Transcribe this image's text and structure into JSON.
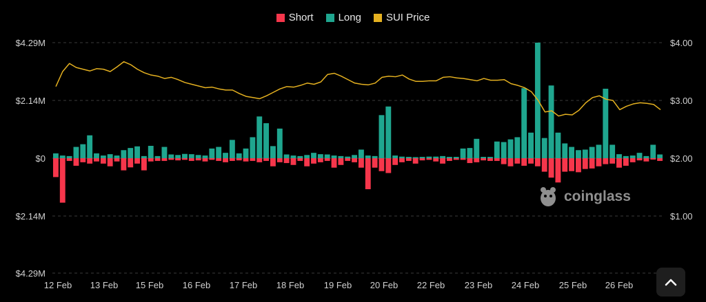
{
  "legend": {
    "short": "Short",
    "long": "Long",
    "price": "SUI Price"
  },
  "watermark": "coinglass",
  "colors": {
    "short": "#f6364b",
    "long": "#1fa68f",
    "price": "#e5b120",
    "grid": "#3a3a3a",
    "background": "#000000"
  },
  "icons": {
    "scroll_top": "chevron-up-icon",
    "logo": "coinglass-logo-icon"
  },
  "chart_data": {
    "type": "bar",
    "y_left_ticks": [
      "$4.29M",
      "$2.14M",
      "$0",
      "$2.14M",
      "$4.29M"
    ],
    "y_left_range": [
      -4.29,
      4.29
    ],
    "y_left_unit": "M USD",
    "y_right_ticks": [
      "$4.00",
      "$3.00",
      "$2.00",
      "$1.00"
    ],
    "y_right_range": [
      0,
      4
    ],
    "x_ticks": [
      "12 Feb",
      "13 Feb",
      "15 Feb",
      "16 Feb",
      "17 Feb",
      "18 Feb",
      "19 Feb",
      "20 Feb",
      "22 Feb",
      "23 Feb",
      "24 Feb",
      "25 Feb",
      "26 Feb"
    ],
    "grid": true,
    "legend_position": "top-center",
    "series": [
      {
        "name": "Long",
        "values": [
          0.18,
          0.1,
          0.08,
          0.42,
          0.52,
          0.85,
          0.18,
          0.1,
          0.15,
          0.1,
          0.3,
          0.38,
          0.44,
          0.08,
          0.46,
          0.08,
          0.42,
          0.14,
          0.12,
          0.16,
          0.15,
          0.12,
          0.1,
          0.36,
          0.42,
          0.2,
          0.68,
          0.18,
          0.36,
          0.78,
          1.55,
          1.3,
          0.45,
          1.1,
          0.14,
          0.1,
          0.08,
          0.12,
          0.2,
          0.15,
          0.14,
          0.1,
          0.08,
          0.06,
          0.12,
          0.32,
          0.1,
          0.08,
          1.6,
          1.92,
          0.1,
          0.06,
          0.05,
          0.04,
          0.05,
          0.06,
          0.06,
          0.08,
          0.05,
          0.05,
          0.36,
          0.38,
          0.72,
          0.05,
          0.05,
          0.62,
          0.6,
          0.7,
          0.78,
          2.6,
          0.95,
          4.29,
          0.75,
          2.7,
          0.95,
          0.55,
          0.42,
          0.3,
          0.32,
          0.42,
          0.5,
          2.58,
          0.5,
          0.15,
          0.08,
          0.1,
          0.2,
          0.08,
          0.5,
          0.14
        ],
        "color": "#1fa68f"
      },
      {
        "name": "Short",
        "values": [
          0.7,
          1.65,
          0.1,
          0.28,
          0.15,
          0.2,
          0.12,
          0.2,
          0.3,
          0.12,
          0.45,
          0.34,
          0.2,
          0.45,
          0.12,
          0.1,
          0.1,
          0.06,
          0.08,
          0.06,
          0.1,
          0.08,
          0.12,
          0.06,
          0.1,
          0.15,
          0.1,
          0.08,
          0.12,
          0.1,
          0.15,
          0.1,
          0.3,
          0.15,
          0.18,
          0.25,
          0.1,
          0.3,
          0.2,
          0.15,
          0.1,
          0.35,
          0.25,
          0.1,
          0.15,
          0.35,
          1.15,
          0.35,
          0.48,
          0.55,
          0.25,
          0.15,
          0.1,
          0.2,
          0.08,
          0.06,
          0.12,
          0.2,
          0.1,
          0.06,
          0.06,
          0.18,
          0.15,
          0.08,
          0.1,
          0.1,
          0.22,
          0.3,
          0.2,
          0.28,
          0.2,
          0.3,
          0.5,
          0.72,
          0.9,
          0.5,
          0.48,
          0.52,
          0.4,
          0.38,
          0.3,
          0.22,
          0.2,
          0.35,
          0.28,
          0.15,
          0.08,
          0.12,
          0.05,
          0.1
        ],
        "color": "#f6364b"
      },
      {
        "name": "SUI Price",
        "axis": "right",
        "values": [
          3.24,
          3.5,
          3.64,
          3.57,
          3.54,
          3.51,
          3.55,
          3.54,
          3.5,
          3.58,
          3.67,
          3.62,
          3.54,
          3.48,
          3.44,
          3.42,
          3.38,
          3.4,
          3.36,
          3.31,
          3.28,
          3.25,
          3.22,
          3.23,
          3.2,
          3.18,
          3.18,
          3.12,
          3.07,
          3.05,
          3.03,
          3.08,
          3.14,
          3.2,
          3.24,
          3.23,
          3.26,
          3.3,
          3.28,
          3.32,
          3.45,
          3.47,
          3.42,
          3.36,
          3.3,
          3.28,
          3.27,
          3.3,
          3.4,
          3.42,
          3.41,
          3.44,
          3.37,
          3.33,
          3.33,
          3.34,
          3.34,
          3.4,
          3.41,
          3.39,
          3.38,
          3.36,
          3.34,
          3.38,
          3.35,
          3.35,
          3.36,
          3.29,
          3.26,
          3.22,
          3.15,
          3.0,
          2.8,
          2.82,
          2.73,
          2.76,
          2.75,
          2.83,
          2.96,
          3.05,
          3.08,
          3.02,
          3.0,
          2.84,
          2.9,
          2.94,
          2.96,
          2.95,
          2.93,
          2.84
        ],
        "color": "#e5b120"
      }
    ]
  }
}
